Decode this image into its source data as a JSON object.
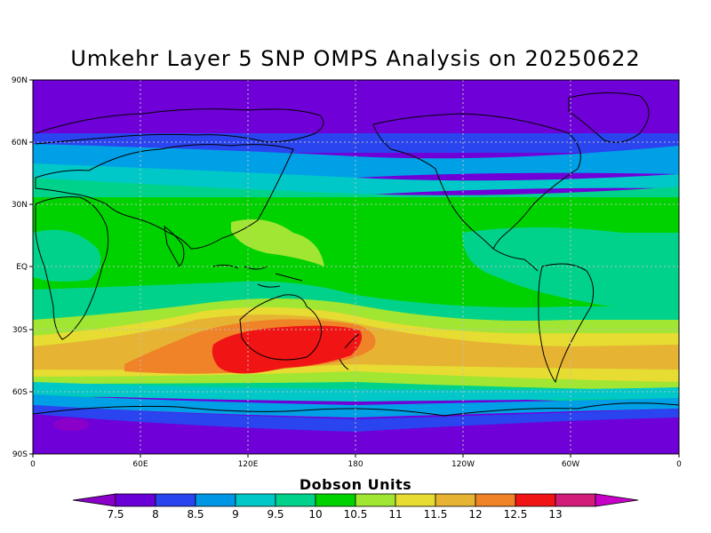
{
  "title": "Umkehr Layer 5 SNP OMPS Analysis on 20250622",
  "map": {
    "lat_labels": [
      "90N",
      "60N",
      "30N",
      "EQ",
      "30S",
      "60S",
      "90S"
    ],
    "lon_labels": [
      "0",
      "60E",
      "120E",
      "180",
      "120W",
      "60W",
      "0"
    ],
    "projection": "cylindrical equidistant",
    "grid": "dotted every 60° longitude, 30° latitude"
  },
  "colorbar": {
    "title": "Dobson Units",
    "levels": [
      "7.5",
      "8",
      "8.5",
      "9",
      "9.5",
      "10",
      "10.5",
      "11",
      "11.5",
      "12",
      "12.5",
      "13"
    ],
    "colors": [
      "#8a00c8",
      "#6a00d8",
      "#2a44f0",
      "#0096e6",
      "#00c8c8",
      "#00d28c",
      "#00d200",
      "#a0e632",
      "#e6dc32",
      "#e6b432",
      "#f08228",
      "#f01414",
      "#d21e78",
      "#c800c8"
    ]
  },
  "field_colors": {
    "c1": "#7000d8",
    "c2": "#2a44f0",
    "c3": "#00a0e6",
    "c4": "#00c8c8",
    "c5": "#00d28c",
    "c6": "#00d200",
    "c7": "#a0e632",
    "c8": "#e6dc32",
    "c9": "#e6b432",
    "c10": "#f08228",
    "c11": "#f01414"
  }
}
